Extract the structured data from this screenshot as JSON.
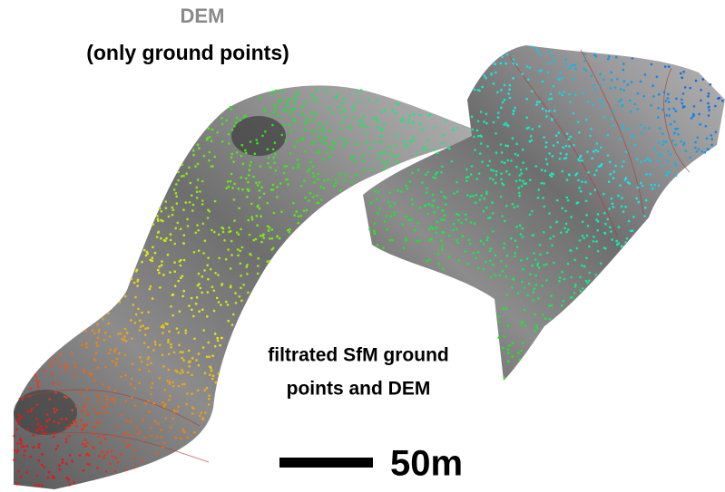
{
  "header": {
    "title": "DEM",
    "subtitle": "(only ground points)"
  },
  "annotation": {
    "lines": [
      "filtrated SfM ground",
      "points and DEM"
    ]
  },
  "scale_bar": {
    "label": "50m"
  }
}
